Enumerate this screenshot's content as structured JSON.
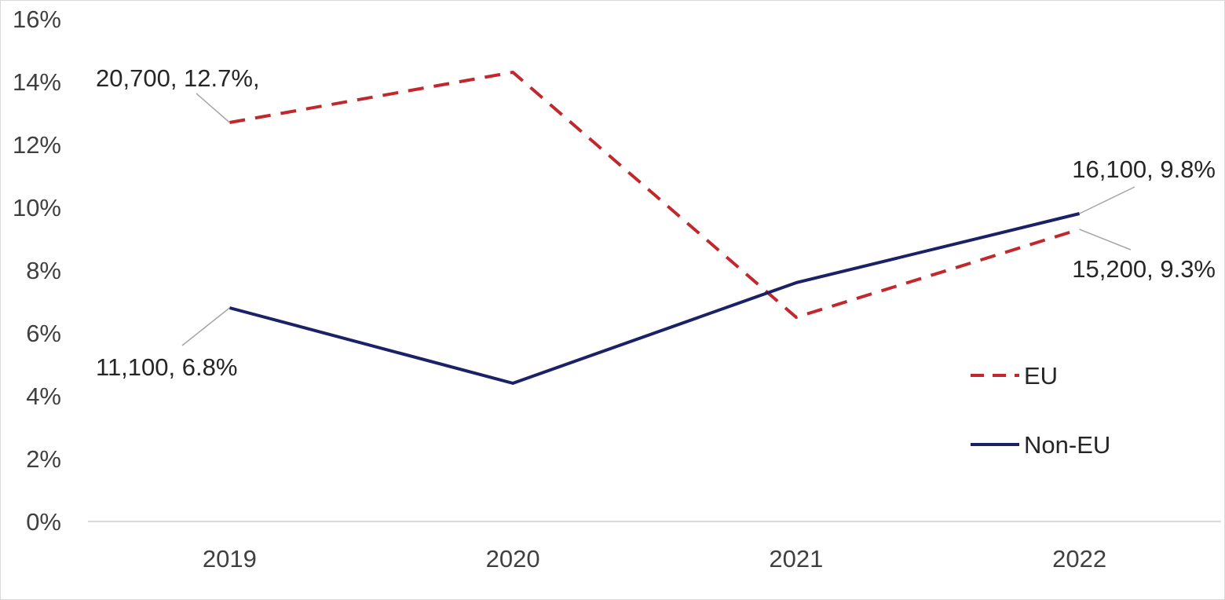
{
  "chart_data": {
    "type": "line",
    "title": "",
    "xlabel": "",
    "ylabel": "",
    "categories": [
      "2019",
      "2020",
      "2021",
      "2022"
    ],
    "ylim": [
      0,
      16
    ],
    "y_ticks": [
      0,
      2,
      4,
      6,
      8,
      10,
      12,
      14,
      16
    ],
    "y_tick_labels": [
      "0%",
      "2%",
      "4%",
      "6%",
      "8%",
      "10%",
      "12%",
      "14%",
      "16%"
    ],
    "grid": false,
    "legend_position": "right",
    "series": [
      {
        "name": "EU",
        "color": "#c0282d",
        "style": "dashed",
        "values": [
          12.7,
          14.3,
          6.5,
          9.3
        ],
        "labels": [
          {
            "index": 0,
            "text": "20,700, 12.7%,"
          },
          {
            "index": 3,
            "text": "15,200, 9.3%"
          }
        ]
      },
      {
        "name": "Non-EU",
        "color": "#1b2166",
        "style": "solid",
        "values": [
          6.8,
          4.4,
          7.6,
          9.8
        ],
        "labels": [
          {
            "index": 0,
            "text": "11,100, 6.8%"
          },
          {
            "index": 3,
            "text": "16,100, 9.8%"
          }
        ]
      }
    ]
  }
}
